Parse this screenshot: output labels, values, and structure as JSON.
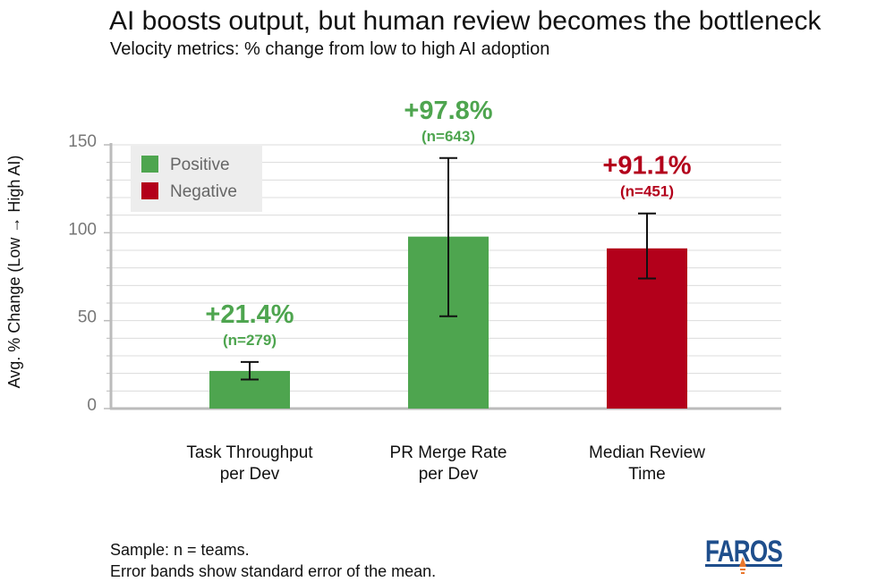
{
  "title": "AI boosts output, but human review becomes the bottleneck",
  "subtitle": "Velocity metrics: % change from low to high AI adoption",
  "footnotes": [
    "Sample: n = teams.",
    "Error bands show standard error of the mean."
  ],
  "logo_text": "FAROS",
  "colors": {
    "positive": "#4ea54f",
    "negative": "#b3001b",
    "axis": "#bbbbbb",
    "grid": "#dcdcdc",
    "tick_text": "#777777",
    "legend_bg": "#ededed",
    "logo_blue": "#1e4e8c",
    "logo_orange": "#e8762c"
  },
  "chart_data": {
    "type": "bar",
    "ylabel": "Avg. % Change (Low → High AI)",
    "ylim": [
      0,
      150
    ],
    "yticks": [
      0,
      50,
      100,
      150
    ],
    "grid": true,
    "legend_position": "top-left",
    "legend": [
      {
        "label": "Positive",
        "color": "#4ea54f"
      },
      {
        "label": "Negative",
        "color": "#b3001b"
      }
    ],
    "bars": [
      {
        "category": [
          "Task Throughput",
          "per Dev"
        ],
        "value": 21.4,
        "error_low": 16.5,
        "error_high": 26.5,
        "label": "+21.4%",
        "n_label": "(n=279)",
        "polarity": "positive"
      },
      {
        "category": [
          "PR Merge Rate",
          "per Dev"
        ],
        "value": 97.8,
        "error_low": 52.5,
        "error_high": 142.5,
        "label": "+97.8%",
        "n_label": "(n=643)",
        "polarity": "positive"
      },
      {
        "category": [
          "Median Review",
          "Time"
        ],
        "value": 91.1,
        "error_low": 74,
        "error_high": 111,
        "label": "+91.1%",
        "n_label": "(n=451)",
        "polarity": "negative"
      }
    ]
  }
}
